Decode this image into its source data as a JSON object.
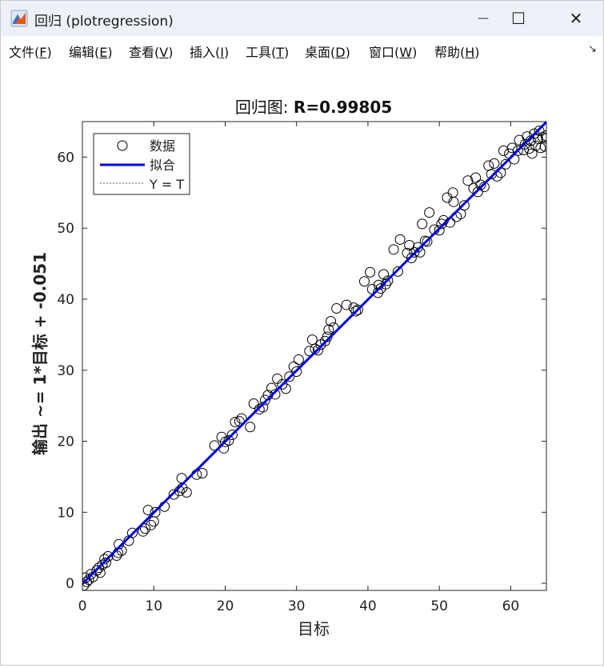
{
  "window": {
    "title": "回归 (plotregression)",
    "controls": {
      "minimize": "—",
      "maximize": "☐",
      "close": "✕"
    }
  },
  "menu": [
    {
      "label": "文件",
      "key": "F"
    },
    {
      "label": "编辑",
      "key": "E"
    },
    {
      "label": "查看",
      "key": "V"
    },
    {
      "label": "插入",
      "key": "I"
    },
    {
      "label": "工具",
      "key": "T"
    },
    {
      "label": "桌面",
      "key": "D"
    },
    {
      "label": "窗口",
      "key": "W"
    },
    {
      "label": "帮助",
      "key": "H"
    }
  ],
  "dock_icon": "dock-arrow-icon",
  "colors": {
    "fit_line": "#0000dd",
    "identity_line": "#555555",
    "markers": "#000000"
  },
  "chart_data": {
    "type": "scatter",
    "title_prefix": "回归图: ",
    "title_value": "R=0.99805",
    "xlabel": "目标",
    "ylabel": "输出 ~= 1*目标 + -0.051",
    "xlim": [
      0,
      65
    ],
    "ylim": [
      -1,
      65
    ],
    "xticks": [
      0,
      10,
      20,
      30,
      40,
      50,
      60
    ],
    "yticks": [
      0,
      10,
      20,
      30,
      40,
      50,
      60
    ],
    "grid": false,
    "legend_position": "top-left",
    "legend": [
      "数据",
      "拟合",
      "Y = T"
    ],
    "fit": {
      "slope": 1,
      "intercept": -0.051
    },
    "points": [
      [
        0.2,
        -0.3
      ],
      [
        0.4,
        0.8
      ],
      [
        0.6,
        0.2
      ],
      [
        0.9,
        0.5
      ],
      [
        1.2,
        1.3
      ],
      [
        1.5,
        0.9
      ],
      [
        2.0,
        1.8
      ],
      [
        2.3,
        2.2
      ],
      [
        2.5,
        1.5
      ],
      [
        2.8,
        2.6
      ],
      [
        3.1,
        3.4
      ],
      [
        3.3,
        2.9
      ],
      [
        3.6,
        3.8
      ],
      [
        4.8,
        3.9
      ],
      [
        5.0,
        4.3
      ],
      [
        5.1,
        5.5
      ],
      [
        5.5,
        4.6
      ],
      [
        6.5,
        6.0
      ],
      [
        7.0,
        7.1
      ],
      [
        8.5,
        7.3
      ],
      [
        8.8,
        7.7
      ],
      [
        9.2,
        10.3
      ],
      [
        9.6,
        8.2
      ],
      [
        10.0,
        8.7
      ],
      [
        10.2,
        10.0
      ],
      [
        11.5,
        10.8
      ],
      [
        12.8,
        12.5
      ],
      [
        13.6,
        13.0
      ],
      [
        13.9,
        14.8
      ],
      [
        14.0,
        13.4
      ],
      [
        14.6,
        12.8
      ],
      [
        16.0,
        15.3
      ],
      [
        16.8,
        15.5
      ],
      [
        18.5,
        19.4
      ],
      [
        19.5,
        20.6
      ],
      [
        19.8,
        19.0
      ],
      [
        20.0,
        19.9
      ],
      [
        20.5,
        20.1
      ],
      [
        21.0,
        20.9
      ],
      [
        21.4,
        22.7
      ],
      [
        22.0,
        22.8
      ],
      [
        22.3,
        23.2
      ],
      [
        23.5,
        22.0
      ],
      [
        24.0,
        25.3
      ],
      [
        24.8,
        24.5
      ],
      [
        25.3,
        24.8
      ],
      [
        25.6,
        25.8
      ],
      [
        26.0,
        26.5
      ],
      [
        26.5,
        27.5
      ],
      [
        27.0,
        26.6
      ],
      [
        27.3,
        28.8
      ],
      [
        28.0,
        28.0
      ],
      [
        28.5,
        27.4
      ],
      [
        29.0,
        29.1
      ],
      [
        29.6,
        30.5
      ],
      [
        30.0,
        29.8
      ],
      [
        30.3,
        31.5
      ],
      [
        31.8,
        32.7
      ],
      [
        32.2,
        34.3
      ],
      [
        32.6,
        33.0
      ],
      [
        33.0,
        32.8
      ],
      [
        33.4,
        33.6
      ],
      [
        34.0,
        34.1
      ],
      [
        34.3,
        34.7
      ],
      [
        34.5,
        35.7
      ],
      [
        34.8,
        36.9
      ],
      [
        35.2,
        36.0
      ],
      [
        35.6,
        38.7
      ],
      [
        37.0,
        39.2
      ],
      [
        38.0,
        38.8
      ],
      [
        38.3,
        38.3
      ],
      [
        38.6,
        38.5
      ],
      [
        39.5,
        42.5
      ],
      [
        40.3,
        43.8
      ],
      [
        40.6,
        41.4
      ],
      [
        41.4,
        40.9
      ],
      [
        41.5,
        42.0
      ],
      [
        41.8,
        41.5
      ],
      [
        42.2,
        43.5
      ],
      [
        42.5,
        42.1
      ],
      [
        42.8,
        42.6
      ],
      [
        43.6,
        47.0
      ],
      [
        44.2,
        43.9
      ],
      [
        44.5,
        48.4
      ],
      [
        45.5,
        46.5
      ],
      [
        45.8,
        47.6
      ],
      [
        46.1,
        45.8
      ],
      [
        46.5,
        46.6
      ],
      [
        47.0,
        47.3
      ],
      [
        47.3,
        46.6
      ],
      [
        47.6,
        50.6
      ],
      [
        48.0,
        48.2
      ],
      [
        48.3,
        48.1
      ],
      [
        48.6,
        52.2
      ],
      [
        49.3,
        49.8
      ],
      [
        50.0,
        49.7
      ],
      [
        50.3,
        50.6
      ],
      [
        50.6,
        51.1
      ],
      [
        51.1,
        54.3
      ],
      [
        51.5,
        50.8
      ],
      [
        51.9,
        55.0
      ],
      [
        52.0,
        53.7
      ],
      [
        52.4,
        51.6
      ],
      [
        53.0,
        52.0
      ],
      [
        53.5,
        53.2
      ],
      [
        54.0,
        56.7
      ],
      [
        54.8,
        55.6
      ],
      [
        55.1,
        57.1
      ],
      [
        55.4,
        55.1
      ],
      [
        55.8,
        56.1
      ],
      [
        56.3,
        55.8
      ],
      [
        56.9,
        58.8
      ],
      [
        57.3,
        57.6
      ],
      [
        57.7,
        59.1
      ],
      [
        58.1,
        57.3
      ],
      [
        58.6,
        57.8
      ],
      [
        59.0,
        60.9
      ],
      [
        59.3,
        59.0
      ],
      [
        59.8,
        60.5
      ],
      [
        60.2,
        61.3
      ],
      [
        60.5,
        59.7
      ],
      [
        61.0,
        60.9
      ],
      [
        61.2,
        62.4
      ],
      [
        61.8,
        61.0
      ],
      [
        62.0,
        61.8
      ],
      [
        62.3,
        62.9
      ],
      [
        62.6,
        61.2
      ],
      [
        62.8,
        62.3
      ],
      [
        63.0,
        60.5
      ],
      [
        63.3,
        63.3
      ],
      [
        63.5,
        61.6
      ],
      [
        63.8,
        62.6
      ],
      [
        64.0,
        63.7
      ],
      [
        64.2,
        61.3
      ],
      [
        64.5,
        62.8
      ],
      [
        64.8,
        61.5
      ],
      [
        65.0,
        62.6
      ],
      [
        64.9,
        63.0
      ]
    ]
  }
}
